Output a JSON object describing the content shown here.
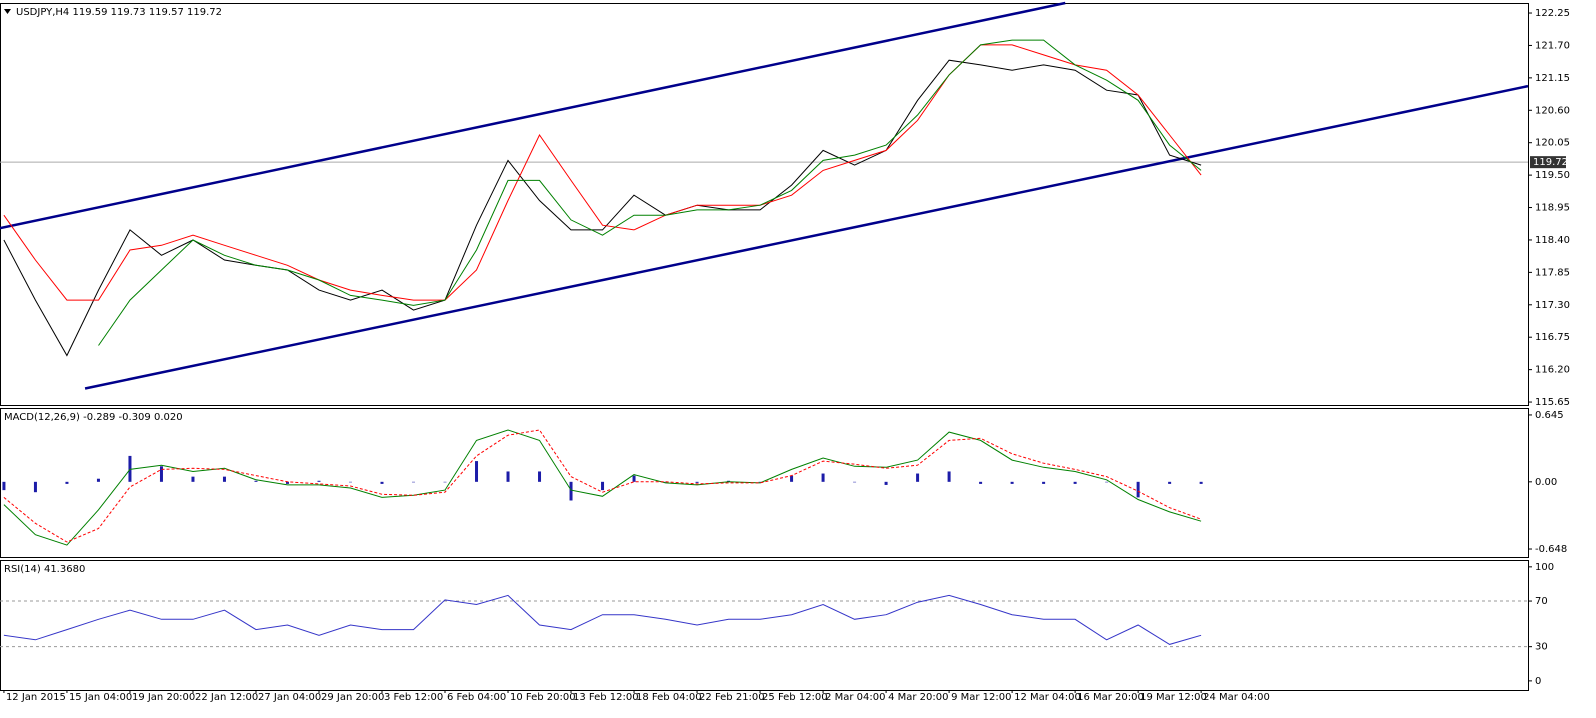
{
  "chart_data": [
    {
      "type": "line",
      "header": "USDJPY,H4  119.59 119.73 119.57 119.72",
      "last_price": 119.72,
      "x": [
        0,
        8,
        16,
        24,
        32,
        40,
        48,
        56,
        64,
        72,
        80,
        88,
        96,
        104,
        112,
        120,
        128,
        136,
        144,
        152,
        160,
        168,
        176,
        184,
        192,
        200,
        208,
        216,
        224,
        232,
        240,
        248,
        256,
        264,
        272,
        280,
        288,
        296,
        304
      ],
      "xlim": [
        -1,
        387
      ],
      "ylim": [
        115.6,
        122.42
      ],
      "yticks": [
        122.25,
        {
          "value": 121.7,
          "label": "121.70"
        },
        121.15,
        {
          "value": 120.6,
          "label": "120.60"
        },
        120.05,
        {
          "value": 119.5,
          "label": "119.50"
        },
        118.95,
        {
          "value": 118.4,
          "label": "118.40"
        },
        117.85,
        {
          "value": 117.3,
          "label": "117.30"
        },
        116.75,
        {
          "value": 116.2,
          "label": "116.20"
        },
        115.65
      ],
      "series": [
        {
          "color": "#000000",
          "values": [
            118.4,
            117.38,
            116.44,
            117.55,
            118.57,
            118.14,
            118.4,
            118.06,
            117.97,
            117.89,
            117.55,
            117.38,
            117.55,
            117.21,
            117.38,
            118.65,
            119.75,
            119.07,
            118.57,
            118.57,
            119.16,
            118.82,
            118.99,
            118.91,
            118.91,
            119.33,
            119.92,
            119.67,
            119.92,
            120.77,
            121.45,
            121.37,
            121.28,
            121.37,
            121.28,
            120.94,
            120.86,
            119.84,
            119.67
          ]
        },
        {
          "color": "#ff0000",
          "values": [
            118.82,
            118.06,
            117.38,
            117.38,
            118.23,
            118.31,
            118.48,
            118.31,
            118.14,
            117.97,
            117.72,
            117.55,
            117.46,
            117.38,
            117.38,
            117.89,
            119.07,
            120.18,
            119.41,
            118.65,
            118.57,
            118.82,
            118.99,
            118.99,
            118.99,
            119.16,
            119.58,
            119.75,
            119.92,
            120.43,
            121.2,
            121.71,
            121.71,
            121.54,
            121.37,
            121.28,
            120.86,
            120.18,
            119.5
          ]
        },
        {
          "color": "#008000",
          "values": [
            null,
            null,
            null,
            116.61,
            117.38,
            117.89,
            118.4,
            118.14,
            117.97,
            117.89,
            117.72,
            117.46,
            117.38,
            117.29,
            117.38,
            118.23,
            119.41,
            119.41,
            118.74,
            118.48,
            118.82,
            118.82,
            118.91,
            118.91,
            118.99,
            119.24,
            119.75,
            119.84,
            120.01,
            120.52,
            121.2,
            121.71,
            121.79,
            121.79,
            121.37,
            121.11,
            120.77,
            120.01,
            119.58
          ]
        }
      ],
      "trendlines": [
        {
          "color": "#00008b",
          "x": [
            -1,
            269.5
          ],
          "y": [
            118.6,
            122.42
          ]
        },
        {
          "color": "#00008b",
          "x": [
            20.6,
            387
          ],
          "y": [
            115.88,
            121.01
          ]
        }
      ]
    },
    {
      "type": "line",
      "header": "MACD(12,26,9) -0.289 -0.309 0.020",
      "x": [
        0,
        8,
        16,
        24,
        32,
        40,
        48,
        56,
        64,
        72,
        80,
        88,
        96,
        104,
        112,
        120,
        128,
        136,
        144,
        152,
        160,
        168,
        176,
        184,
        192,
        200,
        208,
        216,
        224,
        232,
        240,
        248,
        256,
        264,
        272,
        280,
        288,
        296,
        304
      ],
      "xlim": [
        -1,
        387
      ],
      "ylim": [
        -0.725,
        0.712
      ],
      "yticks": [
        0.645,
        {
          "value": 0,
          "label": "0.00"
        },
        -0.648
      ],
      "series": [
        {
          "kind": "bar",
          "color": "#1c1ca8",
          "values": [
            -0.08,
            -0.1,
            -0.02,
            0.03,
            0.25,
            0.15,
            0.05,
            0.05,
            0.01,
            -0.02,
            0.01,
            0,
            -0.02,
            0,
            0,
            0.2,
            0.1,
            0.1,
            -0.18,
            -0.08,
            0.06,
            0,
            -0.01,
            0.01,
            0,
            0.06,
            0.08,
            0,
            -0.03,
            0.08,
            0.1,
            -0.02,
            -0.02,
            -0.02,
            -0.02,
            0,
            -0.15,
            -0.02,
            -0.02
          ]
        },
        {
          "color": "#008000",
          "values": [
            -0.22,
            -0.51,
            -0.61,
            -0.27,
            0.12,
            0.16,
            0.1,
            0.13,
            0.02,
            -0.03,
            -0.03,
            -0.06,
            -0.15,
            -0.13,
            -0.08,
            0.4,
            0.5,
            0.4,
            -0.08,
            -0.14,
            0.07,
            -0.01,
            -0.03,
            0,
            -0.01,
            0.12,
            0.23,
            0.15,
            0.14,
            0.21,
            0.48,
            0.4,
            0.21,
            0.14,
            0.1,
            0.02,
            -0.17,
            -0.29,
            -0.38
          ]
        },
        {
          "color": "#ff0000",
          "dash": true,
          "values": [
            -0.15,
            -0.4,
            -0.58,
            -0.45,
            -0.05,
            0.12,
            0.13,
            0.12,
            0.06,
            0,
            -0.02,
            -0.04,
            -0.12,
            -0.13,
            -0.1,
            0.25,
            0.45,
            0.5,
            0.05,
            -0.1,
            0,
            0,
            -0.02,
            -0.01,
            -0.01,
            0.06,
            0.2,
            0.17,
            0.13,
            0.16,
            0.4,
            0.42,
            0.27,
            0.18,
            0.12,
            0.05,
            -0.09,
            -0.25,
            -0.36
          ]
        }
      ]
    },
    {
      "type": "line",
      "header": "RSI(14) 41.3680",
      "x": [
        0,
        8,
        16,
        24,
        32,
        40,
        48,
        56,
        64,
        72,
        80,
        88,
        96,
        104,
        112,
        120,
        128,
        136,
        144,
        152,
        160,
        168,
        176,
        184,
        192,
        200,
        208,
        216,
        224,
        232,
        240,
        248,
        256,
        264,
        272,
        280,
        288,
        296,
        304
      ],
      "xlim": [
        -1,
        387
      ],
      "ylim": [
        -8,
        106
      ],
      "yticks": [
        100,
        70,
        30,
        0
      ],
      "levels": [
        70,
        30
      ],
      "series": [
        {
          "color": "#3535c8",
          "values": [
            40,
            36,
            45,
            54,
            62,
            54,
            54,
            62,
            45,
            49,
            40,
            49,
            45,
            45,
            71,
            67,
            75,
            49,
            45,
            58,
            58,
            54,
            49,
            54,
            54,
            58,
            67,
            54,
            58,
            69,
            75,
            67,
            58,
            54,
            54,
            36,
            49,
            32,
            40
          ]
        }
      ],
      "xticks": [
        {
          "value": 0,
          "label": "12 Jan 2015"
        },
        {
          "value": 16,
          "label": "15 Jan 04:00"
        },
        {
          "value": 32,
          "label": "19 Jan 20:00"
        },
        {
          "value": 48,
          "label": "22 Jan 12:00"
        },
        {
          "value": 64,
          "label": "27 Jan 04:00"
        },
        {
          "value": 80,
          "label": "29 Jan 20:00"
        },
        {
          "value": 96,
          "label": "3 Feb 12:00"
        },
        {
          "value": 112,
          "label": "6 Feb 04:00"
        },
        {
          "value": 128,
          "label": "10 Feb 20:00"
        },
        {
          "value": 144,
          "label": "13 Feb 12:00"
        },
        {
          "value": 160,
          "label": "18 Feb 04:00"
        },
        {
          "value": 176,
          "label": "22 Feb 21:00"
        },
        {
          "value": 192,
          "label": "25 Feb 12:00"
        },
        {
          "value": 208,
          "label": "2 Mar 04:00"
        },
        {
          "value": 224,
          "label": "4 Mar 20:00"
        },
        {
          "value": 240,
          "label": "9 Mar 12:00"
        },
        {
          "value": 256,
          "label": "12 Mar 04:00"
        },
        {
          "value": 272,
          "label": "16 Mar 20:00"
        },
        {
          "value": 288,
          "label": "19 Mar 12:00"
        },
        {
          "value": 304,
          "label": "24 Mar 04:00"
        }
      ]
    }
  ]
}
